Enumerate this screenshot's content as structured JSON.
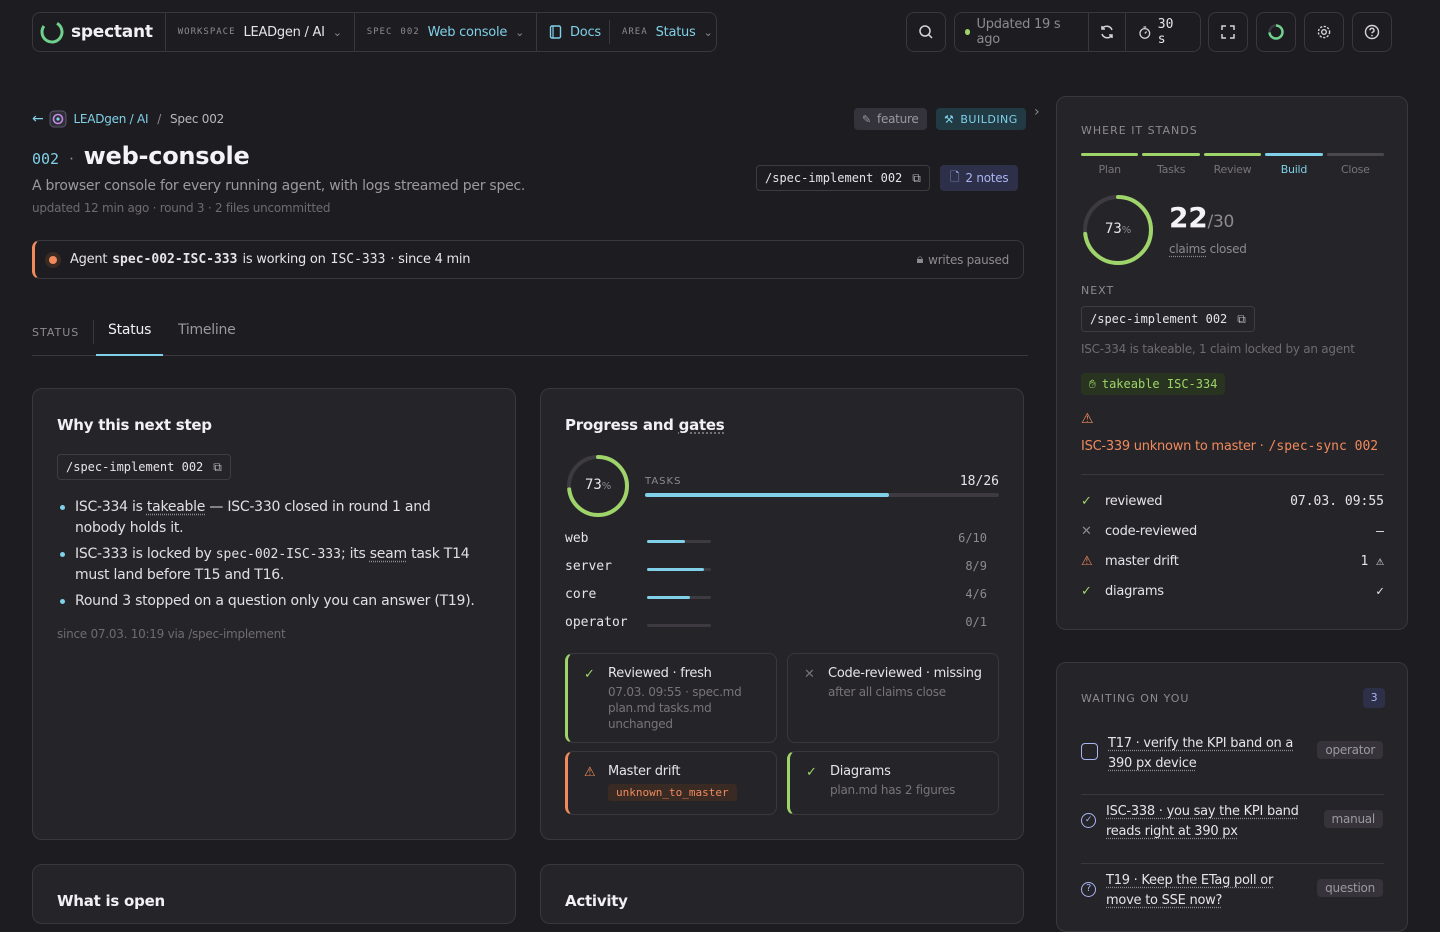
{
  "topbar": {
    "brand": "spectant",
    "workspace_label": "WORKSPACE",
    "workspace_value": "LEADgen / AI",
    "spec_label": "SPEC",
    "spec_num": "002",
    "spec_value": "Web console",
    "docs": "Docs",
    "area_label": "AREA",
    "area_value": "Status",
    "updated": "Updated 19 s ago",
    "interval": "30 s"
  },
  "breadcrumb": {
    "workspace": "LEADgen / AI",
    "sep": "/",
    "spec": "Spec 002"
  },
  "header": {
    "num": "002",
    "sep": "·",
    "title": "web-console",
    "desc": "A browser console for every running agent, with logs streamed per spec.",
    "meta": "updated 12 min ago · round 3 · 2 files uncommitted",
    "tag_feature": "feature",
    "tag_building": "BUILDING",
    "cmd": "/spec-implement 002",
    "notes": "2 notes"
  },
  "agent_banner": {
    "prefix": "Agent",
    "agent": "spec-002-ISC-333",
    "mid": "is working on",
    "task": "ISC-333",
    "suffix": "· since 4 min",
    "writes": "writes paused"
  },
  "tabs": {
    "label": "STATUS",
    "items": [
      "Status",
      "Timeline"
    ]
  },
  "why": {
    "title": "Why this next step",
    "cmd": "/spec-implement 002",
    "b1a": "ISC-334 is ",
    "b1b": "takeable",
    "b1c": " — ISC-330 closed in round 1 and nobody holds it.",
    "b2a": "ISC-333 is locked by ",
    "b2b": "spec-002-ISC-333",
    "b2c": "; its ",
    "b2d": "seam",
    "b2e": " task T14 must land before T15 and T16.",
    "b3": "Round 3 stopped on a question only you can answer (T19).",
    "since": "since 07.03. 10:19 via /spec-implement"
  },
  "progress": {
    "title_a": "Progress and ",
    "title_b": "gates",
    "pct": 73,
    "pct_label": "73",
    "pct_unit": "%",
    "tasks_label": "TASKS",
    "tasks_count": "18/26",
    "tasks_fraction": 0.69,
    "areas": [
      {
        "name": "web",
        "count": "6/10",
        "fraction": 0.6
      },
      {
        "name": "server",
        "count": "8/9",
        "fraction": 0.89
      },
      {
        "name": "core",
        "count": "4/6",
        "fraction": 0.67
      },
      {
        "name": "operator",
        "count": "0/1",
        "fraction": 0
      }
    ],
    "gates": {
      "reviewed_title": "Reviewed · fresh",
      "reviewed_sub1": "07.03. 09:55 · spec.md",
      "reviewed_sub2": "plan.md tasks.md",
      "reviewed_sub3": "unchanged",
      "code_title": "Code-reviewed · missing",
      "code_sub": "after all claims close",
      "drift_title": "Master drift",
      "drift_code": "unknown_to_master",
      "diagrams_title": "Diagrams",
      "diagrams_sub": "plan.md has 2 figures"
    }
  },
  "bottom_cards": {
    "open": "What is open",
    "activity": "Activity"
  },
  "stands": {
    "title": "WHERE IT STANDS",
    "phases": [
      "Plan",
      "Tasks",
      "Review",
      "Build",
      "Close"
    ],
    "pct_label": "73",
    "pct_unit": "%",
    "pct": 73,
    "claims_closed": "22",
    "claims_total": "/30",
    "claims_a": "claims",
    "claims_b": " closed",
    "next_label": "NEXT",
    "next_cmd": "/spec-implement 002",
    "next_note": "ISC-334 is takeable, 1 claim locked by an agent",
    "takeable": "takeable ISC-334",
    "warn_text": "ISC-339 unknown to master ·",
    "warn_cmd": "/spec-sync 002",
    "checks": [
      {
        "name": "reviewed",
        "value": "07.03. 09:55",
        "state": "ok"
      },
      {
        "name": "code-reviewed",
        "value": "–",
        "state": "missing"
      },
      {
        "name": "master drift",
        "value": "1 ⚠",
        "state": "warn"
      },
      {
        "name": "diagrams",
        "value": "✓",
        "state": "ok"
      }
    ]
  },
  "waiting": {
    "title": "WAITING ON YOU",
    "count": "3",
    "items": [
      {
        "text": "T17 · verify the KPI band on a 390 px device",
        "tag": "operator"
      },
      {
        "text": "ISC-338 · you say the KPI band reads right at 390 px",
        "tag": "manual"
      },
      {
        "text": "T19 · Keep the ETag poll or move to SSE now?",
        "tag": "question"
      }
    ]
  },
  "colors": {
    "accent": "#7fd0e8",
    "ok": "#9fd46b",
    "warn": "#f08a5d",
    "bg": "#1d1c20"
  }
}
